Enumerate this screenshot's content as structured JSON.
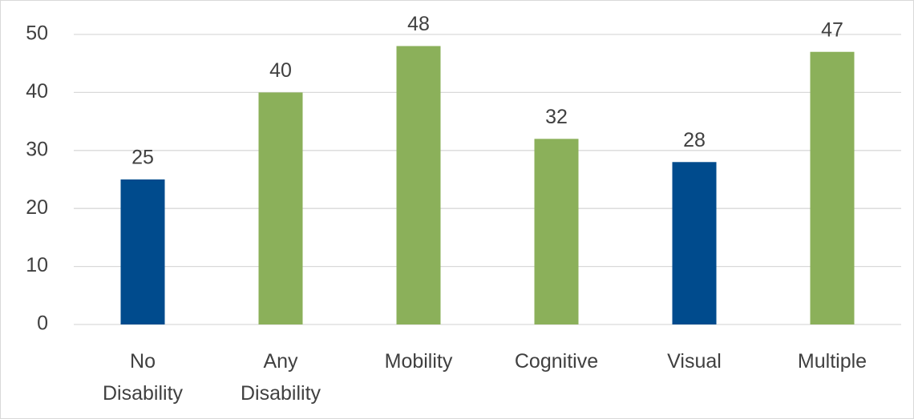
{
  "chart_data": {
    "type": "bar",
    "categories": [
      "No Disability",
      "Any Disability",
      "Mobility",
      "Cognitive",
      "Visual",
      "Multiple"
    ],
    "values": [
      25,
      40,
      48,
      32,
      28,
      47
    ],
    "colors": [
      "#004b8d",
      "#8bb05a",
      "#8bb05a",
      "#8bb05a",
      "#004b8d",
      "#8bb05a"
    ],
    "ylim": [
      0,
      50
    ],
    "yticks": [
      0,
      10,
      20,
      30,
      40,
      50
    ],
    "grid": true
  }
}
